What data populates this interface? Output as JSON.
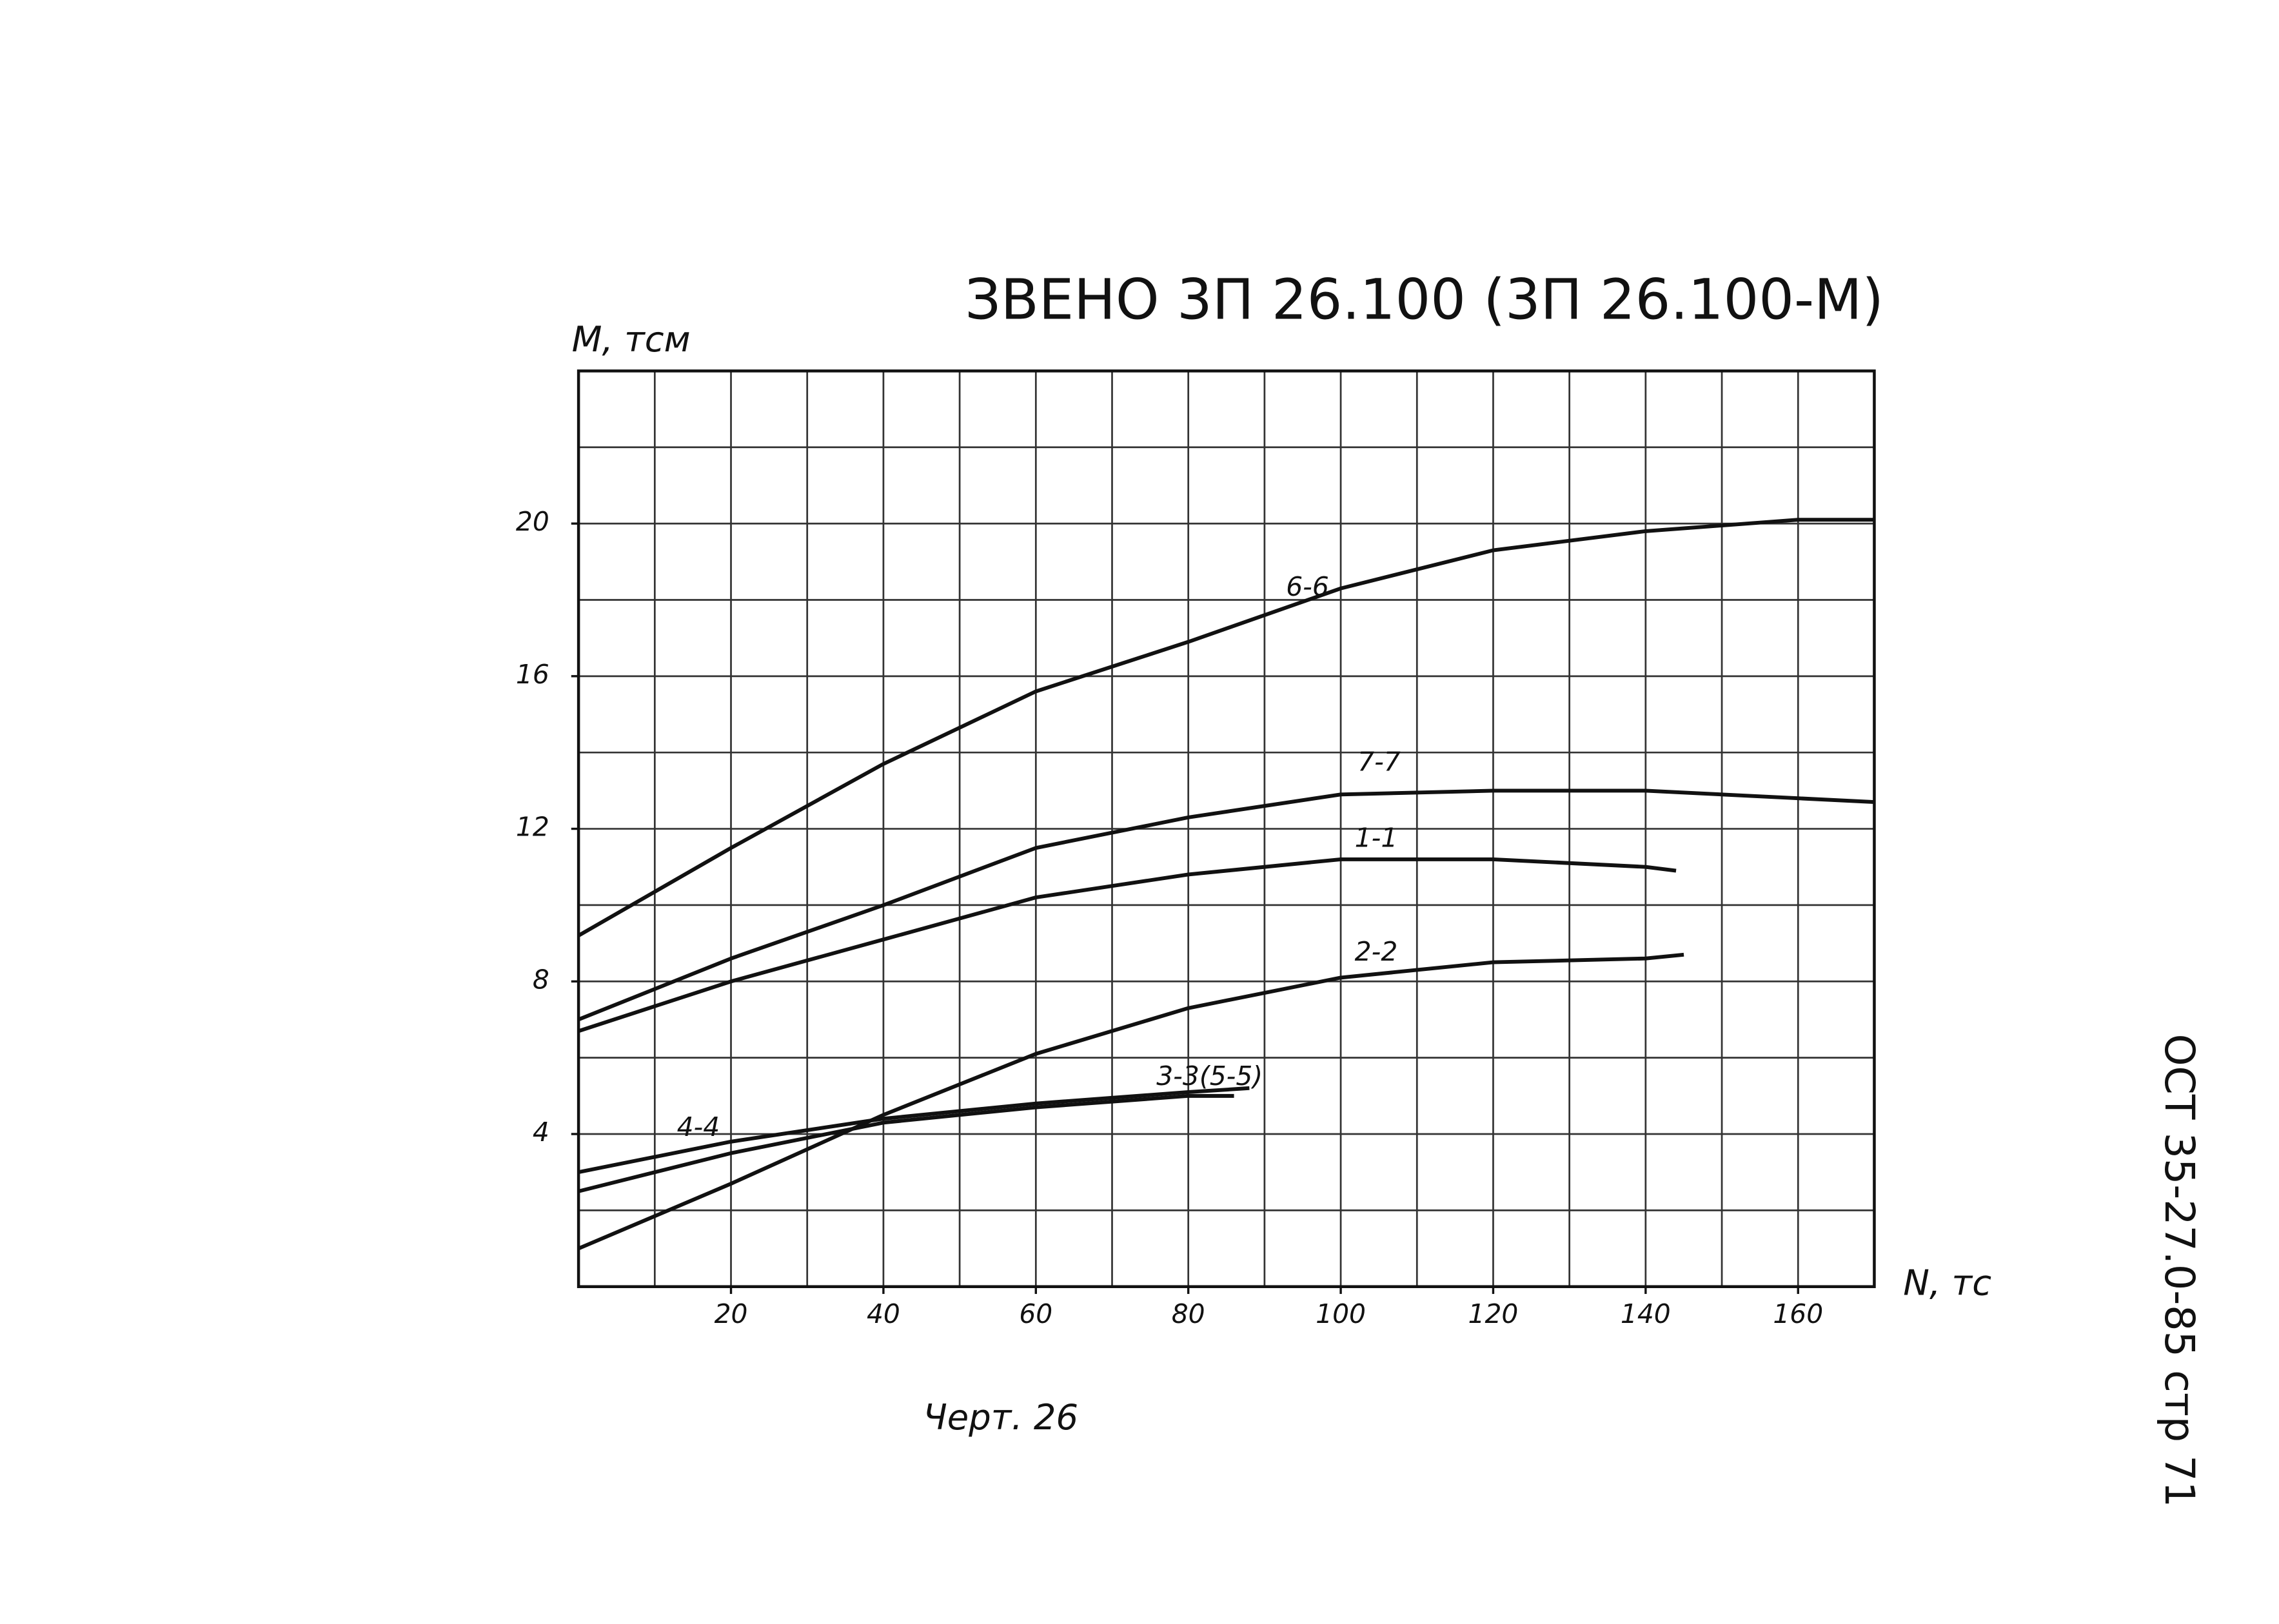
{
  "chart_data": {
    "type": "line",
    "title": "ЗВЕНО 3П 26.100 (3П 26.100-М)",
    "y_label": "М, тсм",
    "x_label": "N, тс",
    "caption": "Черт. 26",
    "side_note": "ОСТ 35-27.0-85 стр 71",
    "xlim": [
      0,
      170
    ],
    "ylim": [
      0,
      24
    ],
    "xticks": [
      20,
      40,
      60,
      80,
      100,
      120,
      140,
      160
    ],
    "yticks": [
      4,
      8,
      12,
      16,
      20
    ],
    "x_grid": [
      10,
      20,
      30,
      40,
      50,
      60,
      70,
      80,
      90,
      100,
      110,
      120,
      130,
      140,
      150,
      160
    ],
    "y_grid": [
      2,
      4,
      6,
      8,
      10,
      12,
      14,
      16,
      18,
      20,
      22
    ],
    "grid": true,
    "series": [
      {
        "name": "6-6",
        "color": "#111",
        "x": [
          0,
          20,
          40,
          60,
          80,
          100,
          120,
          140,
          160,
          170
        ],
        "values": [
          9.2,
          11.5,
          13.7,
          15.6,
          16.9,
          18.3,
          19.3,
          19.8,
          20.1,
          20.1
        ]
      },
      {
        "name": "7-7",
        "color": "#111",
        "x": [
          0,
          20,
          40,
          60,
          80,
          100,
          120,
          140,
          160,
          170
        ],
        "values": [
          7.0,
          8.6,
          10.0,
          11.5,
          12.3,
          12.9,
          13.0,
          13.0,
          12.8,
          12.7
        ]
      },
      {
        "name": "1-1",
        "color": "#111",
        "x": [
          0,
          20,
          40,
          60,
          80,
          100,
          120,
          140,
          144
        ],
        "values": [
          6.7,
          8.0,
          9.1,
          10.2,
          10.8,
          11.2,
          11.2,
          11.0,
          10.9
        ]
      },
      {
        "name": "2-2",
        "color": "#111",
        "x": [
          0,
          20,
          40,
          60,
          80,
          100,
          120,
          140,
          145
        ],
        "values": [
          1.0,
          2.7,
          4.5,
          6.1,
          7.3,
          8.1,
          8.5,
          8.6,
          8.7
        ]
      },
      {
        "name": "3-3(5-5)",
        "color": "#111",
        "x": [
          0,
          20,
          40,
          60,
          80,
          86
        ],
        "values": [
          2.5,
          3.5,
          4.3,
          4.7,
          5.0,
          5.0
        ]
      },
      {
        "name": "4-4",
        "color": "#111",
        "x": [
          0,
          20,
          40,
          60,
          80,
          88
        ],
        "values": [
          3.0,
          3.8,
          4.4,
          4.8,
          5.1,
          5.2
        ]
      }
    ]
  }
}
